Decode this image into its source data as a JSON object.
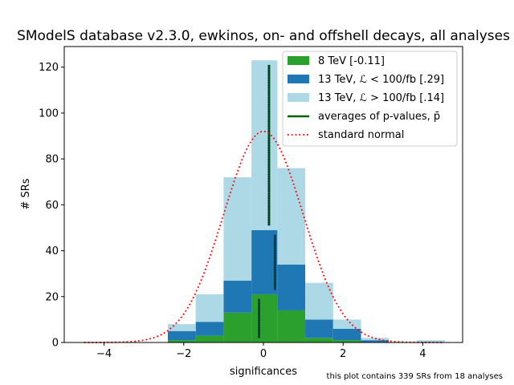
{
  "chart_data": {
    "type": "bar",
    "title": "SModelS database v2.3.0, ewkinos, on- and offshell decays, all analyses",
    "xlabel": "significances",
    "ylabel": "# SRs",
    "footnote": "this plot contains 339 SRs from 18 analyses",
    "xlim": [
      -5.0,
      5.0
    ],
    "ylim": [
      0,
      129
    ],
    "xticks": [
      -4,
      -2,
      0,
      2,
      4
    ],
    "yticks": [
      0,
      20,
      40,
      60,
      80,
      100,
      120
    ],
    "stacked": true,
    "bin_edges": [
      -2.4,
      -1.7,
      -1.0,
      -0.3,
      0.35,
      1.05,
      1.75,
      2.45,
      3.15,
      3.85,
      4.55
    ],
    "legend_position": "top-right",
    "series": [
      {
        "name": "8 TeV [-0.11]",
        "color": "#2ca02c",
        "counts": [
          1,
          3,
          13,
          21,
          14,
          2,
          1,
          0,
          0,
          0
        ]
      },
      {
        "name": "13 TeV, ℒ < 100/fb [.29]",
        "color": "#1f77b4",
        "counts": [
          4,
          6,
          14,
          28,
          20,
          8,
          5,
          1,
          0,
          0
        ]
      },
      {
        "name": "13 TeV, ℒ > 100/fb [.14]",
        "color": "#add8e6",
        "counts": [
          3,
          12,
          45,
          74,
          42,
          16,
          4,
          1,
          0,
          1
        ]
      }
    ],
    "averages": {
      "name": "averages of p-values, p̄",
      "color": "#006400",
      "segments": [
        {
          "x": -0.11,
          "y": [
            2,
            19
          ]
        },
        {
          "x": 0.29,
          "y": [
            23,
            47
          ]
        },
        {
          "x": 0.14,
          "y": [
            51,
            121
          ]
        }
      ]
    },
    "normal_curve": {
      "name": "standard normal",
      "color": "#ff0000",
      "peak": 92,
      "x_range": [
        -4.5,
        4.5
      ]
    }
  }
}
